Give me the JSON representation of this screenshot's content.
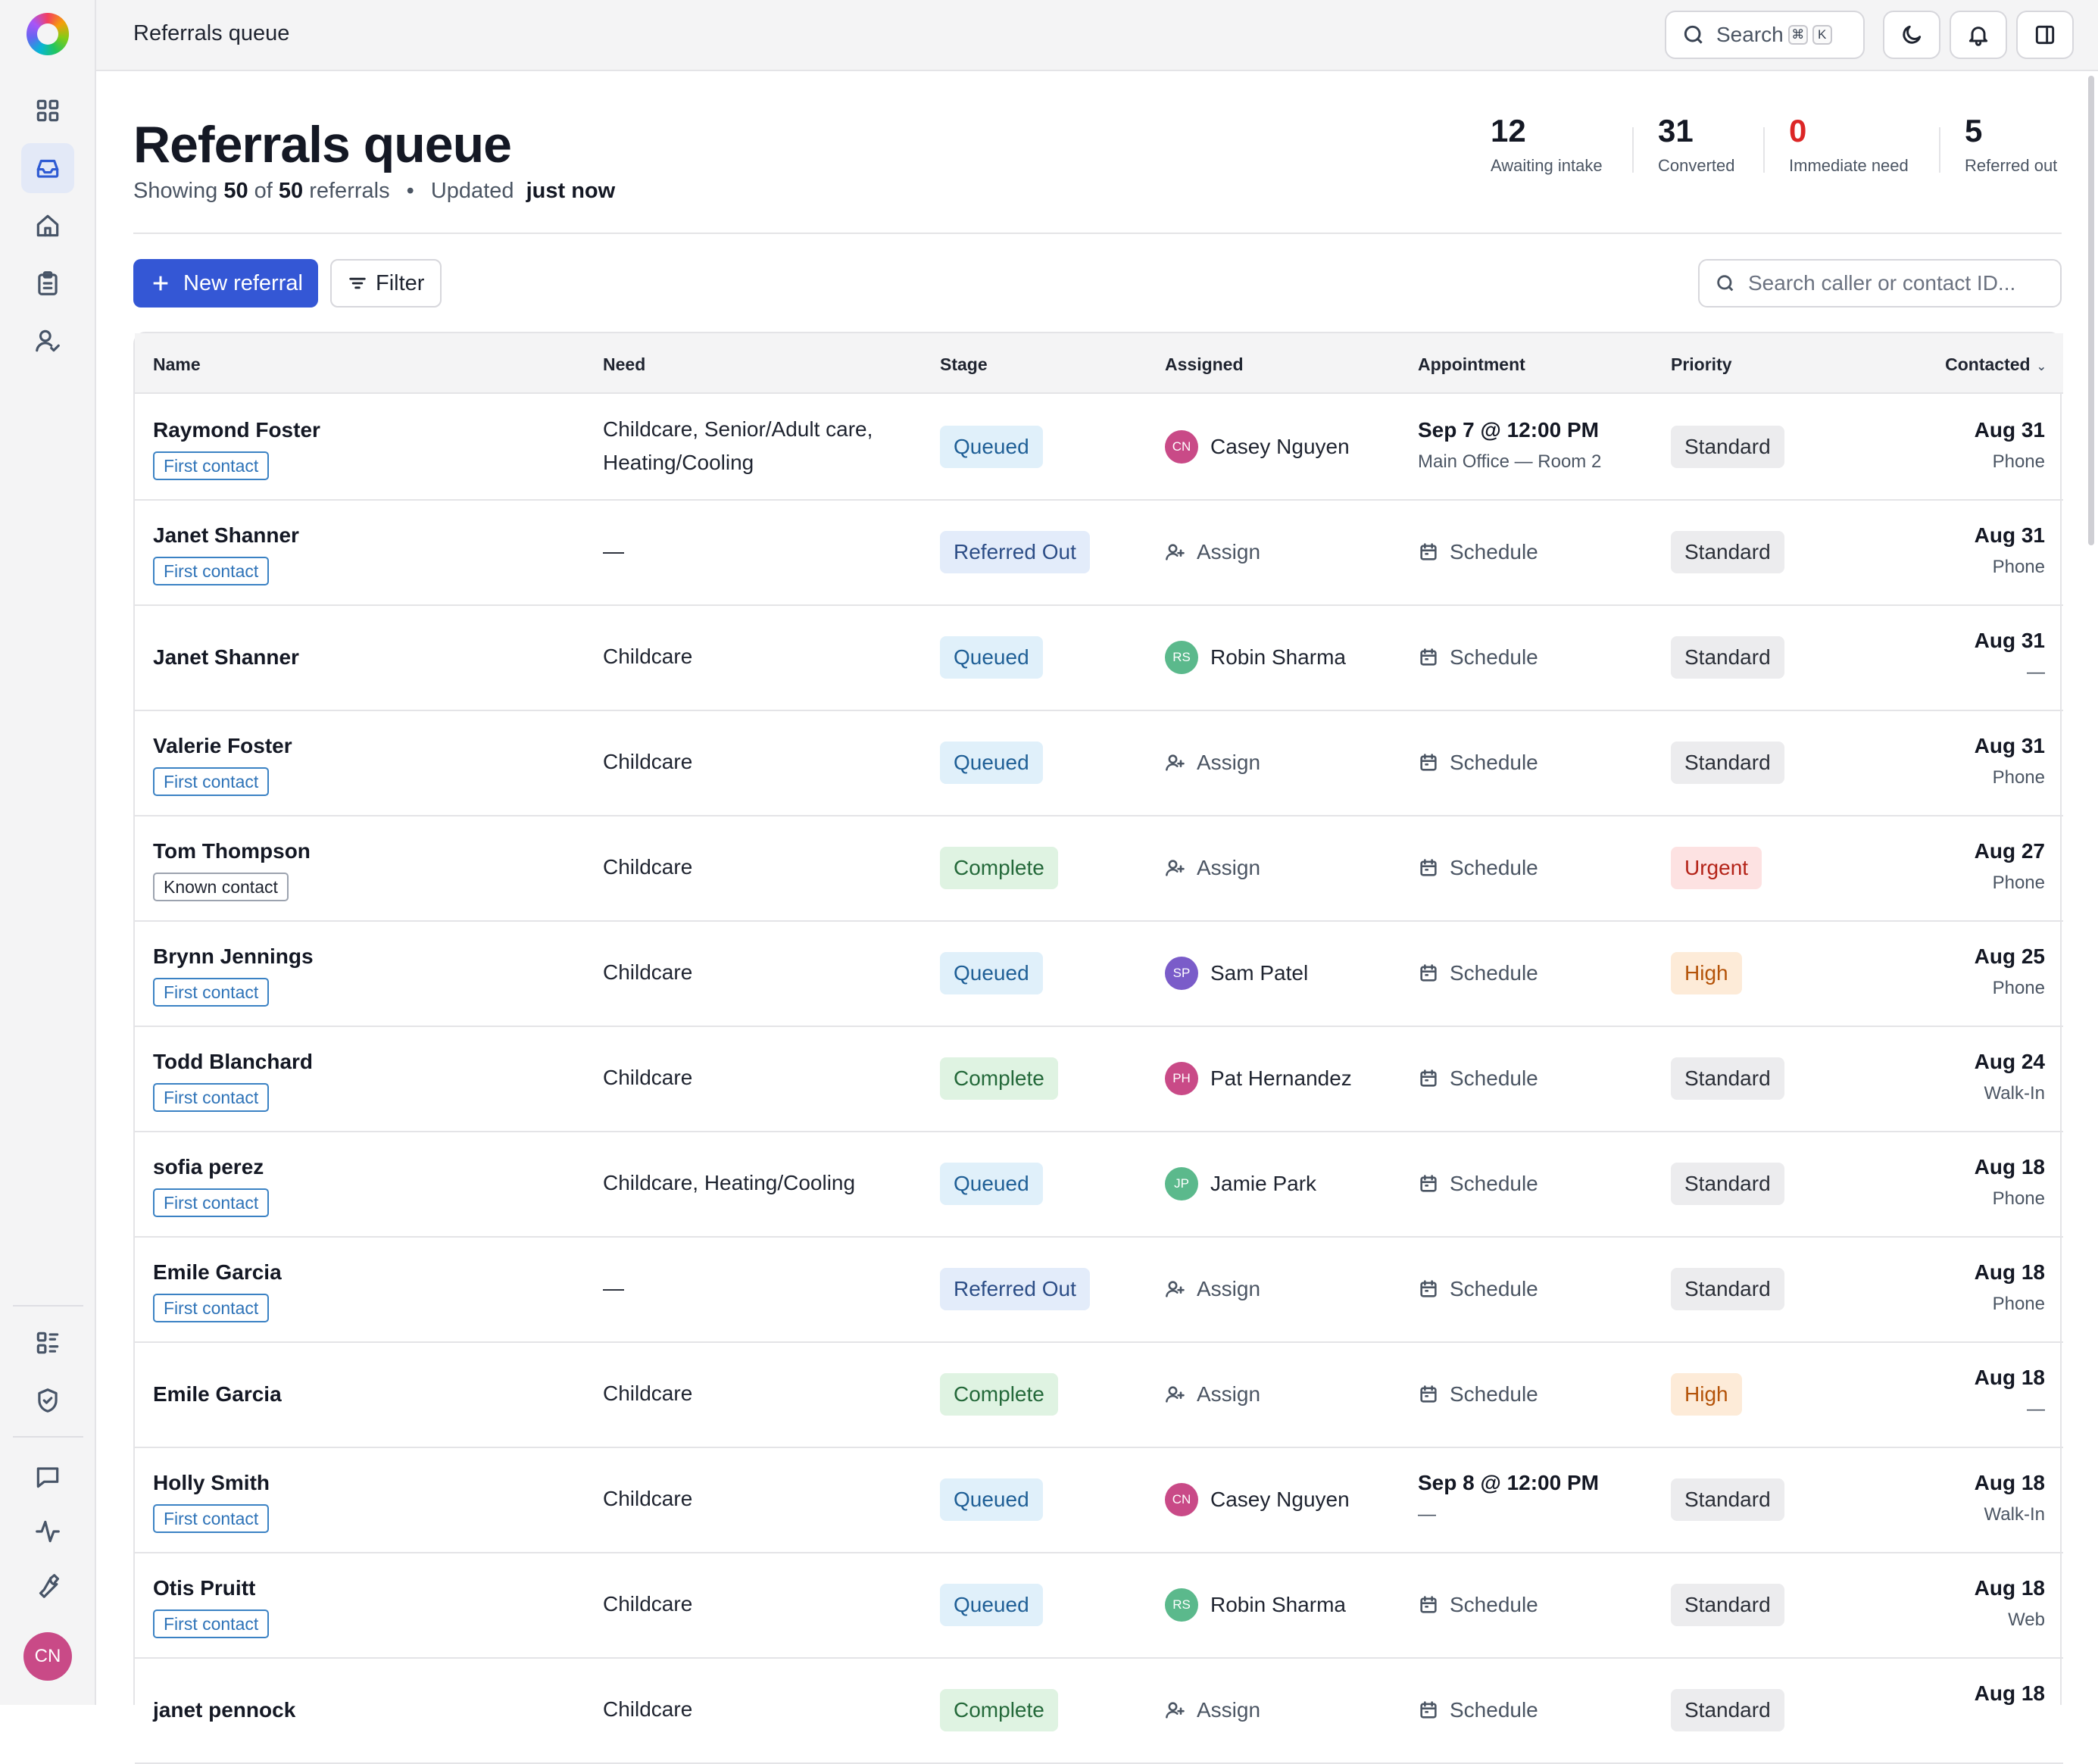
{
  "topbar": {
    "title": "Referrals queue",
    "search_label": "Search",
    "search_kbd1": "⌘",
    "search_kbd2": "K"
  },
  "sidebar": {
    "items": [
      {
        "name": "dashboard-icon",
        "active": false
      },
      {
        "name": "inbox-icon",
        "active": true
      },
      {
        "name": "home-icon",
        "active": false
      },
      {
        "name": "clipboard-icon",
        "active": false
      },
      {
        "name": "user-check-icon",
        "active": false
      },
      {
        "name": "list-details-icon",
        "active": false
      },
      {
        "name": "shield-check-icon",
        "active": false
      },
      {
        "name": "message-icon",
        "active": false
      },
      {
        "name": "activity-icon",
        "active": false
      },
      {
        "name": "wrench-icon",
        "active": false
      }
    ],
    "avatar_initials": "CN"
  },
  "header": {
    "title": "Referrals queue",
    "showing_prefix": "Showing",
    "showing_count": "50",
    "of_word": "of",
    "total_count": "50",
    "referrals_word": "referrals",
    "separator": "•",
    "updated_label": "Updated",
    "updated_value": "just now"
  },
  "stats": [
    {
      "value": "12",
      "label": "Awaiting intake",
      "color": "#141824"
    },
    {
      "value": "31",
      "label": "Converted",
      "color": "#141824"
    },
    {
      "value": "0",
      "label": "Immediate need",
      "color": "#dc2626"
    },
    {
      "value": "5",
      "label": "Referred out",
      "color": "#141824"
    }
  ],
  "toolbar": {
    "new_referral_label": "New referral",
    "filter_label": "Filter",
    "search_placeholder": "Search caller or contact ID..."
  },
  "table": {
    "columns": [
      "Name",
      "Need",
      "Stage",
      "Assigned",
      "Appointment",
      "Priority",
      "Contacted"
    ],
    "sort_indicator": "⌄",
    "assign_label": "Assign",
    "schedule_label": "Schedule",
    "rows": [
      {
        "name": "Raymond Foster",
        "tag": "First contact",
        "need": "Childcare, Senior/Adult care, Heating/Cooling",
        "stage": "Queued",
        "assignee": "Casey Nguyen",
        "initials": "CN",
        "avatar_color": "#c94a87",
        "appt_time": "Sep 7 @ 12:00 PM",
        "appt_loc": "Main Office — Room 2",
        "priority": "Standard",
        "date": "Aug 31",
        "channel": "Phone"
      },
      {
        "name": "Janet Shanner",
        "tag": "First contact",
        "need": "—",
        "stage": "Referred Out",
        "assignee": "",
        "initials": "",
        "avatar_color": "",
        "appt_time": "",
        "appt_loc": "",
        "priority": "Standard",
        "date": "Aug 31",
        "channel": "Phone"
      },
      {
        "name": "Janet Shanner",
        "tag": "",
        "need": "Childcare",
        "stage": "Queued",
        "assignee": "Robin Sharma",
        "initials": "RS",
        "avatar_color": "#5bb98c",
        "appt_time": "",
        "appt_loc": "",
        "priority": "Standard",
        "date": "Aug 31",
        "channel": "—"
      },
      {
        "name": "Valerie Foster",
        "tag": "First contact",
        "need": "Childcare",
        "stage": "Queued",
        "assignee": "",
        "initials": "",
        "avatar_color": "",
        "appt_time": "",
        "appt_loc": "",
        "priority": "Standard",
        "date": "Aug 31",
        "channel": "Phone"
      },
      {
        "name": "Tom Thompson",
        "tag": "Known contact",
        "need": "Childcare",
        "stage": "Complete",
        "assignee": "",
        "initials": "",
        "avatar_color": "",
        "appt_time": "",
        "appt_loc": "",
        "priority": "Urgent",
        "date": "Aug 27",
        "channel": "Phone"
      },
      {
        "name": "Brynn Jennings",
        "tag": "First contact",
        "need": "Childcare",
        "stage": "Queued",
        "assignee": "Sam Patel",
        "initials": "SP",
        "avatar_color": "#7a5cc9",
        "appt_time": "",
        "appt_loc": "",
        "priority": "High",
        "date": "Aug 25",
        "channel": "Phone"
      },
      {
        "name": "Todd Blanchard",
        "tag": "First contact",
        "need": "Childcare",
        "stage": "Complete",
        "assignee": "Pat Hernandez",
        "initials": "PH",
        "avatar_color": "#c94a87",
        "appt_time": "",
        "appt_loc": "",
        "priority": "Standard",
        "date": "Aug 24",
        "channel": "Walk-In"
      },
      {
        "name": "sofia perez",
        "tag": "First contact",
        "need": "Childcare, Heating/Cooling",
        "stage": "Queued",
        "assignee": "Jamie Park",
        "initials": "JP",
        "avatar_color": "#5bb98c",
        "appt_time": "",
        "appt_loc": "",
        "priority": "Standard",
        "date": "Aug 18",
        "channel": "Phone"
      },
      {
        "name": "Emile Garcia",
        "tag": "First contact",
        "need": "—",
        "stage": "Referred Out",
        "assignee": "",
        "initials": "",
        "avatar_color": "",
        "appt_time": "",
        "appt_loc": "",
        "priority": "Standard",
        "date": "Aug 18",
        "channel": "Phone"
      },
      {
        "name": "Emile Garcia",
        "tag": "",
        "need": "Childcare",
        "stage": "Complete",
        "assignee": "",
        "initials": "",
        "avatar_color": "",
        "appt_time": "",
        "appt_loc": "",
        "priority": "High",
        "date": "Aug 18",
        "channel": "—"
      },
      {
        "name": "Holly Smith",
        "tag": "First contact",
        "need": "Childcare",
        "stage": "Queued",
        "assignee": "Casey Nguyen",
        "initials": "CN",
        "avatar_color": "#c94a87",
        "appt_time": "Sep 8 @ 12:00 PM",
        "appt_loc": "—",
        "priority": "Standard",
        "date": "Aug 18",
        "channel": "Walk-In"
      },
      {
        "name": "Otis Pruitt",
        "tag": "First contact",
        "need": "Childcare",
        "stage": "Queued",
        "assignee": "Robin Sharma",
        "initials": "RS",
        "avatar_color": "#5bb98c",
        "appt_time": "",
        "appt_loc": "",
        "priority": "Standard",
        "date": "Aug 18",
        "channel": "Web"
      },
      {
        "name": "janet pennock",
        "tag": "",
        "need": "Childcare",
        "stage": "Complete",
        "assignee": "",
        "initials": "",
        "avatar_color": "",
        "appt_time": "",
        "appt_loc": "",
        "priority": "Standard",
        "date": "Aug 18",
        "channel": ""
      }
    ]
  }
}
